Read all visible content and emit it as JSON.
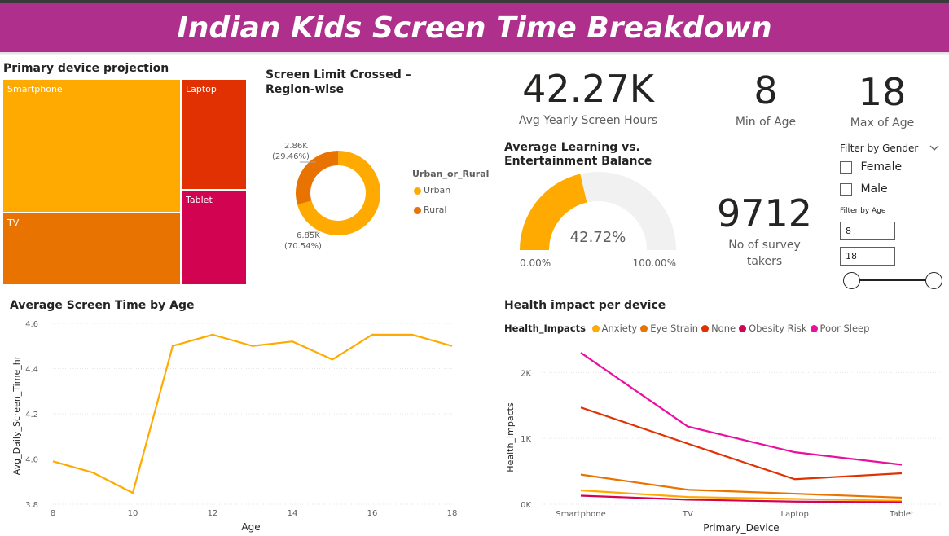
{
  "header": {
    "title": "Indian Kids Screen Time Breakdown"
  },
  "treemap": {
    "title": "Primary device projection",
    "items": [
      {
        "label": "Smartphone",
        "color": "#FFAA00"
      },
      {
        "label": "TV",
        "color": "#E97300"
      },
      {
        "label": "Laptop",
        "color": "#E13102"
      },
      {
        "label": "Tablet",
        "color": "#D20351"
      }
    ]
  },
  "donut": {
    "title_line1": "Screen Limit Crossed –",
    "title_line2": "Region-wise",
    "legend_title": "Urban_or_Rural",
    "slices": [
      {
        "label": "Urban",
        "value": 6.85,
        "display": "6.85K",
        "pct": "(70.54%)",
        "color": "#FFAA00"
      },
      {
        "label": "Rural",
        "value": 2.86,
        "display": "2.86K",
        "pct": "(29.46%)",
        "color": "#E97300"
      }
    ]
  },
  "kpis": {
    "avg_yearly": {
      "value": "42.27K",
      "label": "Avg Yearly Screen Hours"
    },
    "min_age": {
      "value": "8",
      "label": "Min of Age"
    },
    "max_age": {
      "value": "18",
      "label": "Max of Age"
    },
    "survey": {
      "value": "9712",
      "label_line1": "No of survey",
      "label_line2": "takers"
    }
  },
  "gauge": {
    "title_line1": "Average Learning vs.",
    "title_line2": "Entertainment Balance",
    "value_pct": 42.72,
    "value_label": "42.72%",
    "min_label": "0.00%",
    "max_label": "100.00%",
    "fill_color": "#FFAA00",
    "track_color": "#F1F1F1"
  },
  "filters": {
    "gender_title": "Filter by Gender",
    "gender_options": [
      "Female",
      "Male"
    ],
    "age_title": "Filter by Age",
    "age_min": "8",
    "age_max": "18"
  },
  "chart_data": [
    {
      "type": "line",
      "title": "Average Screen Time by Age",
      "xlabel": "Age",
      "ylabel": "Avg_Daily_Screen_Time_hr",
      "x": [
        8,
        9,
        10,
        11,
        12,
        13,
        14,
        15,
        16,
        17,
        18
      ],
      "series": [
        {
          "values": [
            3.99,
            3.94,
            3.85,
            4.5,
            4.55,
            4.5,
            4.52,
            4.44,
            4.55,
            4.55,
            4.5
          ],
          "color": "#FFAA00"
        }
      ],
      "xticks": [
        "8",
        "10",
        "12",
        "14",
        "16",
        "18"
      ],
      "xtick_values": [
        8,
        10,
        12,
        14,
        16,
        18
      ],
      "yticks": [
        "3.8",
        "4.0",
        "4.2",
        "4.4",
        "4.6"
      ],
      "ytick_values": [
        3.8,
        4.0,
        4.2,
        4.4,
        4.6
      ],
      "xlim": [
        8,
        18
      ],
      "ylim": [
        3.8,
        4.6
      ]
    },
    {
      "type": "line",
      "title": "Health impact per device",
      "xlabel": "Primary_Device",
      "ylabel": "Health_Impacts",
      "legend_title": "Health_Impacts",
      "categories": [
        "Smartphone",
        "TV",
        "Laptop",
        "Tablet"
      ],
      "series": [
        {
          "name": "Anxiety",
          "values": [
            210,
            110,
            80,
            50
          ],
          "color": "#FFAA00"
        },
        {
          "name": "Eye Strain",
          "values": [
            450,
            220,
            160,
            100
          ],
          "color": "#E97300"
        },
        {
          "name": "None",
          "values": [
            1470,
            920,
            380,
            470
          ],
          "color": "#E13102"
        },
        {
          "name": "Obesity Risk",
          "values": [
            130,
            70,
            40,
            30
          ],
          "color": "#D20351"
        },
        {
          "name": "Poor Sleep",
          "values": [
            2300,
            1180,
            790,
            600
          ],
          "color": "#E8119E"
        }
      ],
      "yticks": [
        "0K",
        "1K",
        "2K"
      ],
      "ytick_values": [
        0,
        1000,
        2000
      ],
      "ylim": [
        0,
        2400
      ]
    }
  ]
}
